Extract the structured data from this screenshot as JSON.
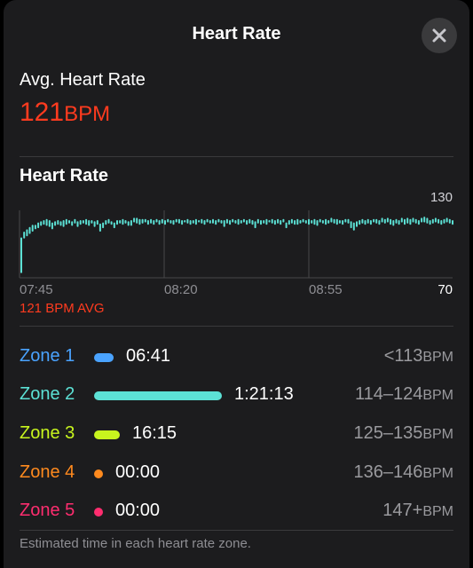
{
  "header": {
    "title": "Heart Rate",
    "close_icon": "close-icon"
  },
  "average": {
    "label": "Avg. Heart Rate",
    "value": "121",
    "unit": "BPM"
  },
  "chart_section": {
    "title": "Heart Rate",
    "avg_caption": "121 BPM AVG"
  },
  "colors": {
    "accent_red": "#ff3b1f",
    "line_teal": "#5ce1d5",
    "zone1": "#4aa3ff",
    "zone2": "#5ce1d5",
    "zone3": "#c8f51e",
    "zone4": "#ff8a1e",
    "zone5": "#ff2d6f"
  },
  "chart_data": {
    "type": "bar",
    "title": "Heart Rate",
    "xlabel": "",
    "ylabel": "",
    "ylim": [
      70,
      130
    ],
    "y_ticks": [
      "130",
      "70"
    ],
    "x_ticks": [
      "07:45",
      "08:20",
      "08:55"
    ],
    "grid": "vertical lines at tick times",
    "series": [
      {
        "values": [
          [
            74,
            105
          ],
          [
            104,
            110
          ],
          [
            106,
            112
          ],
          [
            108,
            114
          ],
          [
            110,
            116
          ],
          [
            112,
            116
          ],
          [
            113,
            118
          ],
          [
            115,
            119
          ],
          [
            116,
            120
          ],
          [
            115,
            121
          ],
          [
            114,
            120
          ],
          [
            112,
            118
          ],
          [
            115,
            119
          ],
          [
            116,
            120
          ],
          [
            115,
            119
          ],
          [
            114,
            120
          ],
          [
            116,
            121
          ],
          [
            117,
            120
          ],
          [
            115,
            119
          ],
          [
            117,
            121
          ],
          [
            114,
            119
          ],
          [
            116,
            120
          ],
          [
            117,
            120
          ],
          [
            116,
            121
          ],
          [
            115,
            120
          ],
          [
            117,
            120
          ],
          [
            114,
            119
          ],
          [
            116,
            120
          ],
          [
            110,
            117
          ],
          [
            113,
            118
          ],
          [
            116,
            120
          ],
          [
            117,
            121
          ],
          [
            116,
            119
          ],
          [
            113,
            118
          ],
          [
            116,
            120
          ],
          [
            117,
            120
          ],
          [
            116,
            121
          ],
          [
            117,
            120
          ],
          [
            115,
            119
          ],
          [
            115,
            120
          ],
          [
            118,
            122
          ],
          [
            117,
            122
          ],
          [
            116,
            121
          ],
          [
            117,
            121
          ],
          [
            118,
            121
          ],
          [
            116,
            120
          ],
          [
            117,
            121
          ],
          [
            116,
            120
          ],
          [
            118,
            121
          ],
          [
            116,
            120
          ],
          [
            117,
            121
          ],
          [
            116,
            120
          ],
          [
            118,
            121
          ],
          [
            117,
            120
          ],
          [
            116,
            120
          ],
          [
            118,
            121
          ],
          [
            117,
            121
          ],
          [
            116,
            120
          ],
          [
            118,
            120
          ],
          [
            117,
            121
          ],
          [
            116,
            120
          ],
          [
            117,
            120
          ],
          [
            116,
            121
          ],
          [
            118,
            120
          ],
          [
            117,
            121
          ],
          [
            116,
            120
          ],
          [
            118,
            121
          ],
          [
            117,
            120
          ],
          [
            117,
            121
          ],
          [
            116,
            120
          ],
          [
            118,
            121
          ],
          [
            117,
            120
          ],
          [
            114,
            120
          ],
          [
            117,
            121
          ],
          [
            116,
            120
          ],
          [
            118,
            121
          ],
          [
            117,
            120
          ],
          [
            116,
            121
          ],
          [
            117,
            120
          ],
          [
            118,
            121
          ],
          [
            116,
            120
          ],
          [
            117,
            121
          ],
          [
            116,
            120
          ],
          [
            113,
            119
          ],
          [
            117,
            121
          ],
          [
            116,
            120
          ],
          [
            117,
            120
          ],
          [
            116,
            121
          ],
          [
            118,
            120
          ],
          [
            117,
            121
          ],
          [
            116,
            120
          ],
          [
            117,
            121
          ],
          [
            116,
            120
          ],
          [
            118,
            121
          ],
          [
            113,
            118
          ],
          [
            116,
            120
          ],
          [
            117,
            121
          ],
          [
            116,
            120
          ],
          [
            116,
            121
          ],
          [
            117,
            120
          ],
          [
            118,
            121
          ],
          [
            117,
            120
          ],
          [
            116,
            121
          ],
          [
            117,
            120
          ],
          [
            116,
            121
          ],
          [
            115,
            120
          ],
          [
            118,
            121
          ],
          [
            117,
            120
          ],
          [
            116,
            121
          ],
          [
            117,
            120
          ],
          [
            118,
            122
          ],
          [
            117,
            121
          ],
          [
            116,
            121
          ],
          [
            117,
            120
          ],
          [
            116,
            120
          ],
          [
            118,
            121
          ],
          [
            117,
            121
          ],
          [
            113,
            119
          ],
          [
            111,
            118
          ],
          [
            114,
            119
          ],
          [
            116,
            120
          ],
          [
            117,
            121
          ],
          [
            116,
            120
          ],
          [
            117,
            121
          ],
          [
            116,
            120
          ],
          [
            118,
            121
          ],
          [
            117,
            121
          ],
          [
            116,
            120
          ],
          [
            118,
            122
          ],
          [
            117,
            121
          ],
          [
            118,
            122
          ],
          [
            116,
            121
          ],
          [
            115,
            120
          ],
          [
            117,
            121
          ],
          [
            116,
            120
          ],
          [
            118,
            122
          ],
          [
            116,
            121
          ],
          [
            117,
            122
          ],
          [
            116,
            121
          ],
          [
            118,
            122
          ],
          [
            117,
            121
          ],
          [
            116,
            120
          ],
          [
            118,
            122
          ],
          [
            118,
            123
          ],
          [
            117,
            122
          ],
          [
            116,
            120
          ],
          [
            117,
            121
          ],
          [
            118,
            122
          ],
          [
            117,
            121
          ],
          [
            116,
            120
          ],
          [
            117,
            121
          ],
          [
            118,
            122
          ],
          [
            117,
            121
          ],
          [
            116,
            120
          ]
        ]
      }
    ]
  },
  "zones": [
    {
      "name": "Zone 1",
      "time": "06:41",
      "range": "<113",
      "unit": "BPM",
      "color": "#4aa3ff",
      "fraction": 0.066,
      "mark": "bar"
    },
    {
      "name": "Zone 2",
      "time": "1:21:13",
      "range": "114–124",
      "unit": "BPM",
      "color": "#5ce1d5",
      "fraction": 0.8,
      "mark": "bar"
    },
    {
      "name": "Zone 3",
      "time": "16:15",
      "range": "125–135",
      "unit": "BPM",
      "color": "#c8f51e",
      "fraction": 0.16,
      "mark": "bar"
    },
    {
      "name": "Zone 4",
      "time": "00:00",
      "range": "136–146",
      "unit": "BPM",
      "color": "#ff8a1e",
      "fraction": 0,
      "mark": "dot"
    },
    {
      "name": "Zone 5",
      "time": "00:00",
      "range": "147+",
      "unit": "BPM",
      "color": "#ff2d6f",
      "fraction": 0,
      "mark": "dot"
    }
  ],
  "footnote": "Estimated time in each heart rate zone."
}
